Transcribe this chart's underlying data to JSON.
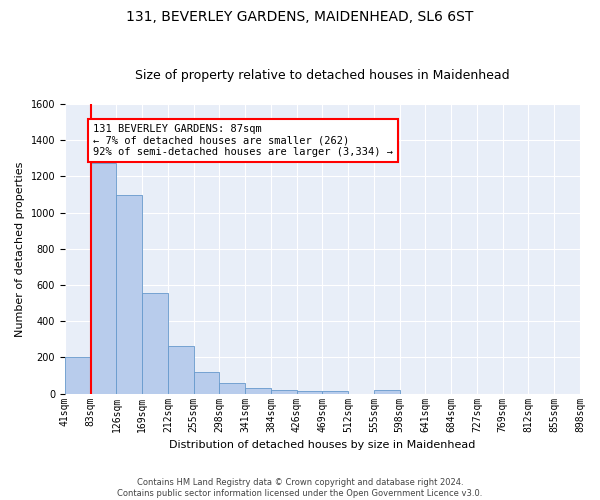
{
  "title": "131, BEVERLEY GARDENS, MAIDENHEAD, SL6 6ST",
  "subtitle": "Size of property relative to detached houses in Maidenhead",
  "xlabel": "Distribution of detached houses by size in Maidenhead",
  "ylabel": "Number of detached properties",
  "footer_line1": "Contains HM Land Registry data © Crown copyright and database right 2024.",
  "footer_line2": "Contains public sector information licensed under the Open Government Licence v3.0.",
  "bar_heights": [
    200,
    1275,
    1100,
    555,
    265,
    120,
    57,
    32,
    20,
    15,
    14,
    0,
    20,
    0,
    0,
    0,
    0,
    0,
    0,
    0
  ],
  "bar_labels": [
    "41sqm",
    "83sqm",
    "126sqm",
    "169sqm",
    "212sqm",
    "255sqm",
    "298sqm",
    "341sqm",
    "384sqm",
    "426sqm",
    "469sqm",
    "512sqm",
    "555sqm",
    "598sqm",
    "641sqm",
    "684sqm",
    "727sqm",
    "769sqm",
    "812sqm",
    "855sqm",
    "898sqm"
  ],
  "bar_color": "#b8ccec",
  "bar_edge_color": "#6699cc",
  "annotation_text": "131 BEVERLEY GARDENS: 87sqm\n← 7% of detached houses are smaller (262)\n92% of semi-detached houses are larger (3,334) →",
  "annotation_box_color": "white",
  "annotation_box_edge_color": "red",
  "vline_color": "red",
  "ylim": [
    0,
    1600
  ],
  "yticks": [
    0,
    200,
    400,
    600,
    800,
    1000,
    1200,
    1400,
    1600
  ],
  "bg_color": "#e8eef8",
  "grid_color": "white",
  "title_fontsize": 10,
  "subtitle_fontsize": 9,
  "ylabel_fontsize": 8,
  "xlabel_fontsize": 8,
  "tick_fontsize": 7,
  "annot_fontsize": 7.5
}
